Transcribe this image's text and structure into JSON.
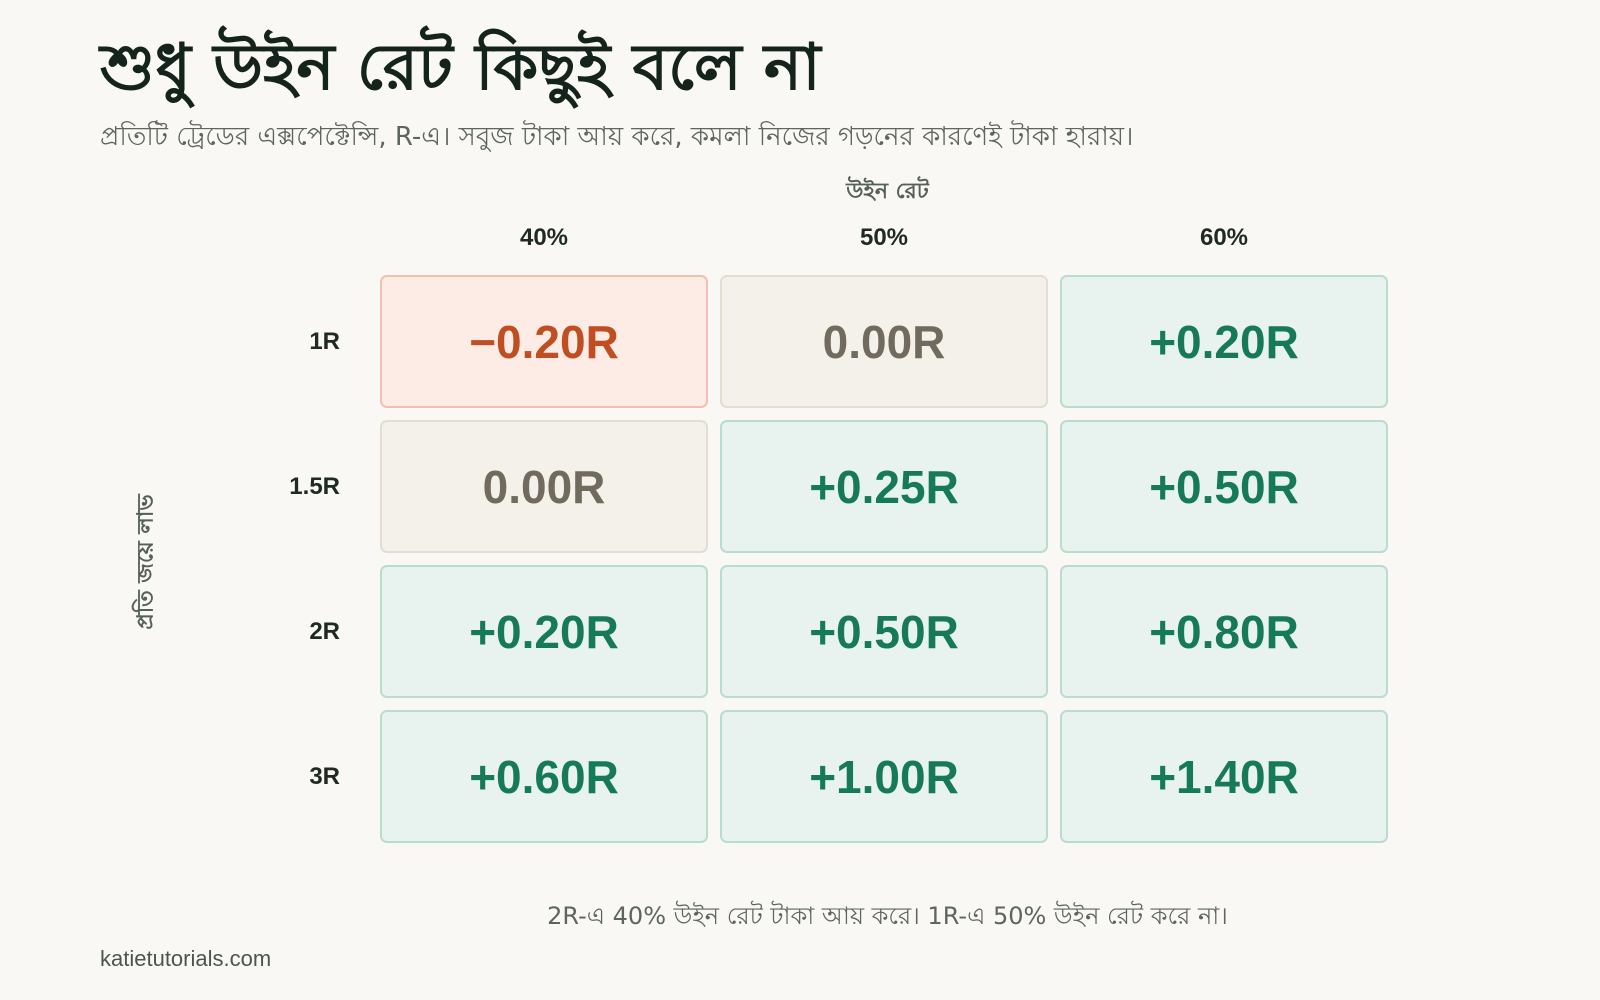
{
  "chart_data": {
    "type": "heatmap",
    "title": "শুধু উইন রেট কিছুই বলে না",
    "subtitle": "প্রতিটি ট্রেডের এক্সপেক্টেন্সি, R-এ। সবুজ টাকা আয় করে, কমলা নিজের গড়নের কারণেই টাকা হারায়।",
    "xlabel": "উইন রেট",
    "ylabel": "প্রতি জয়ে লাভ",
    "x_categories": [
      "40%",
      "50%",
      "60%"
    ],
    "y_categories": [
      "1R",
      "1.5R",
      "2R",
      "3R"
    ],
    "values": [
      [
        -0.2,
        0.0,
        0.2
      ],
      [
        0.0,
        0.25,
        0.5
      ],
      [
        0.2,
        0.5,
        0.8
      ],
      [
        0.6,
        1.0,
        1.4
      ]
    ],
    "cell_labels": [
      [
        "−0.20R",
        "0.00R",
        "+0.20R"
      ],
      [
        "0.00R",
        "+0.25R",
        "+0.50R"
      ],
      [
        "+0.20R",
        "+0.50R",
        "+0.80R"
      ],
      [
        "+0.60R",
        "+1.00R",
        "+1.40R"
      ]
    ],
    "colors": {
      "negative": "#c04e22",
      "neutral": "#706b5e",
      "positive": "#167a58"
    },
    "footnote": "2R-এ 40% উইন রেট টাকা আয় করে। 1R-এ 50% উইন রেট করে না।"
  },
  "source": "katietutorials.com"
}
